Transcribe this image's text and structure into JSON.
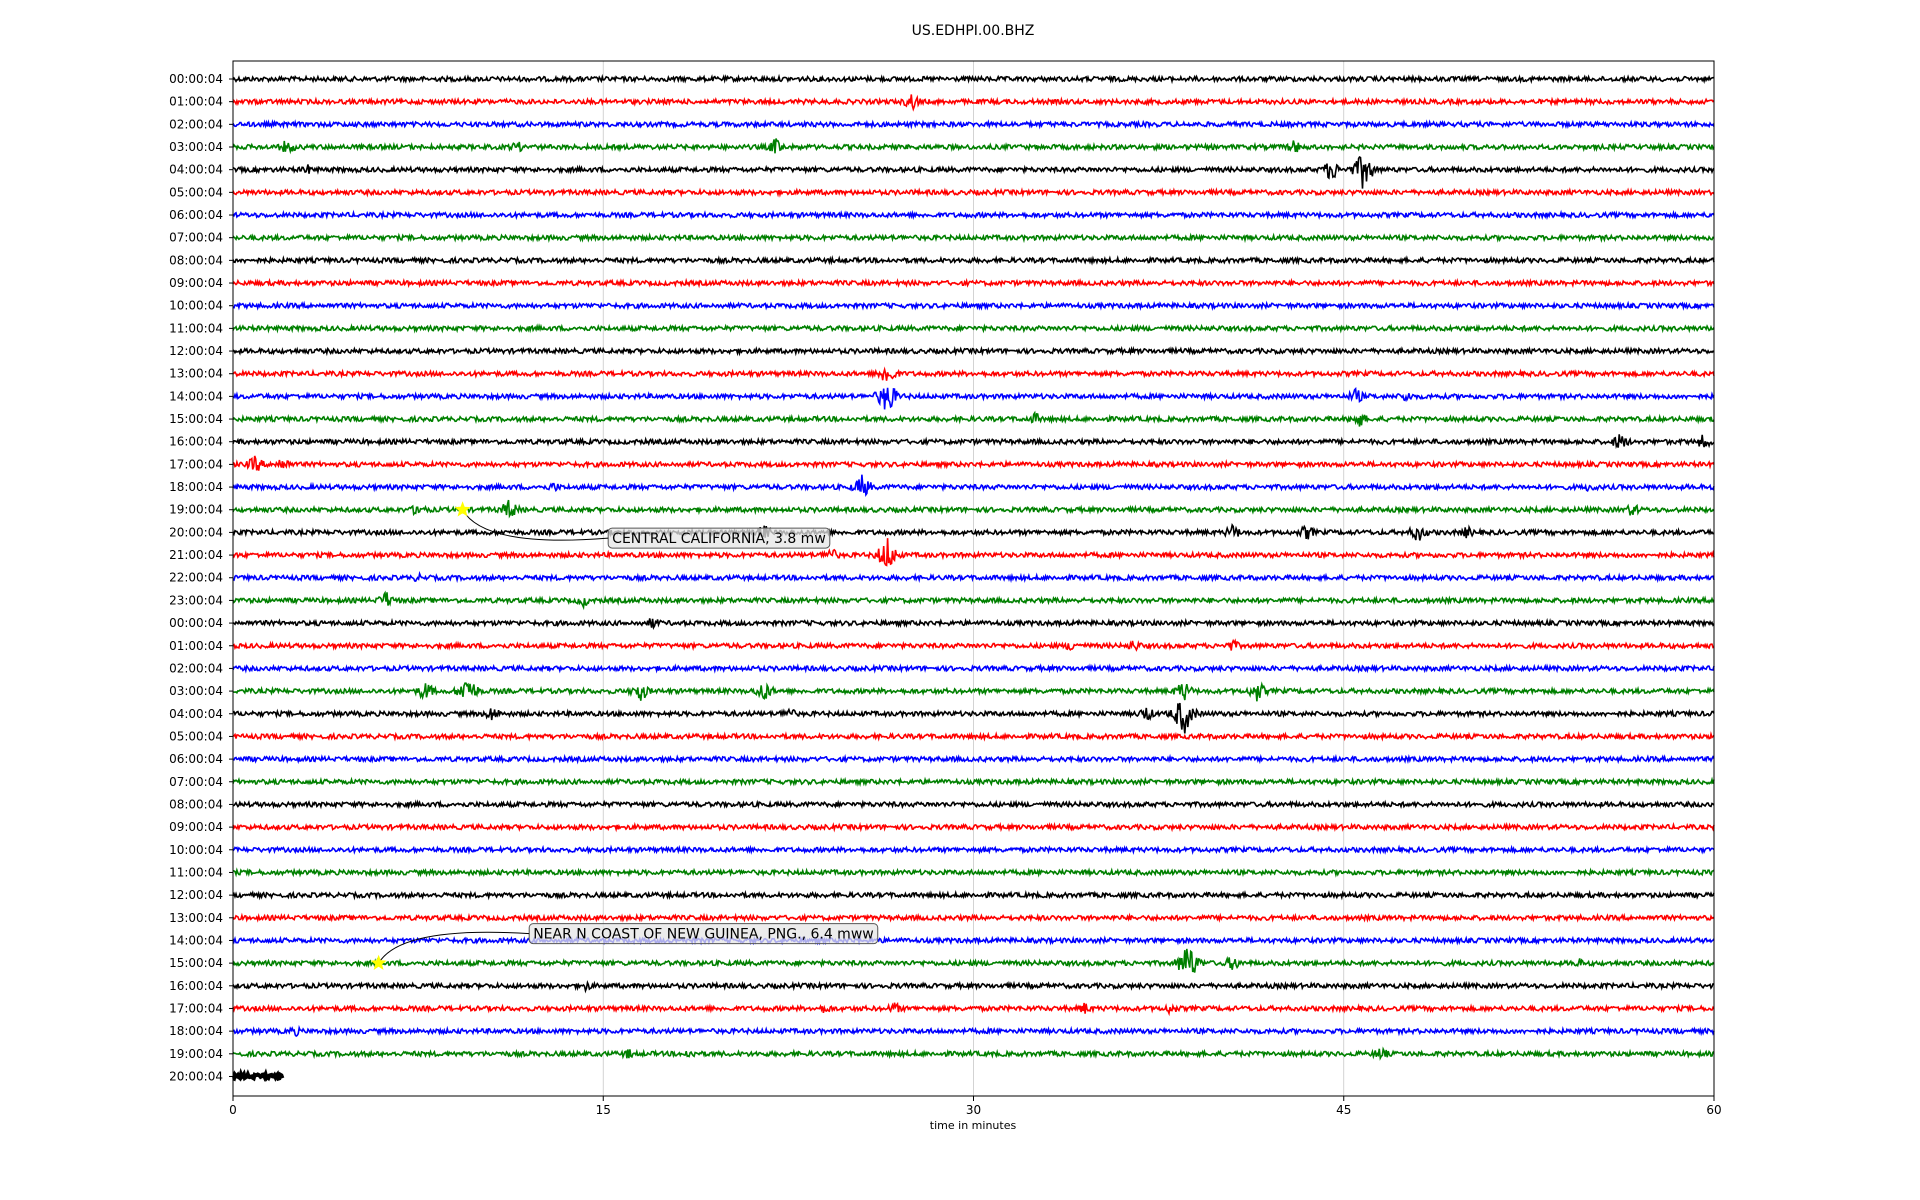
{
  "chart_data": {
    "type": "line",
    "title": "US.EDHPI.00.BHZ",
    "xlabel": "time in minutes",
    "ylabel": "",
    "xlim": [
      0,
      60
    ],
    "xticks": [
      "0",
      "15",
      "30",
      "45",
      "60"
    ],
    "grid": true,
    "row_labels": [
      "00:00:04",
      "01:00:04",
      "02:00:04",
      "03:00:04",
      "04:00:04",
      "05:00:04",
      "06:00:04",
      "07:00:04",
      "08:00:04",
      "09:00:04",
      "10:00:04",
      "11:00:04",
      "12:00:04",
      "13:00:04",
      "14:00:04",
      "15:00:04",
      "16:00:04",
      "17:00:04",
      "18:00:04",
      "19:00:04",
      "20:00:04",
      "21:00:04",
      "22:00:04",
      "23:00:04",
      "00:00:04",
      "01:00:04",
      "02:00:04",
      "03:00:04",
      "04:00:04",
      "05:00:04",
      "06:00:04",
      "07:00:04",
      "08:00:04",
      "09:00:04",
      "10:00:04",
      "11:00:04",
      "12:00:04",
      "13:00:04",
      "14:00:04",
      "15:00:04",
      "16:00:04",
      "17:00:04",
      "18:00:04",
      "19:00:04",
      "20:00:04"
    ],
    "trace_colors": [
      "#000000",
      "#ff0000",
      "#0000ff",
      "#008000"
    ],
    "last_trace_end_minute": 2,
    "events": [
      {
        "row": 1,
        "minute": 27.5,
        "amp": 10
      },
      {
        "row": 3,
        "minute": 2.2,
        "amp": 9
      },
      {
        "row": 3,
        "minute": 11.5,
        "amp": 7
      },
      {
        "row": 3,
        "minute": 22,
        "amp": 10
      },
      {
        "row": 3,
        "minute": 43,
        "amp": 8
      },
      {
        "row": 4,
        "minute": 3,
        "amp": 6
      },
      {
        "row": 4,
        "minute": 44.5,
        "amp": 13
      },
      {
        "row": 4,
        "minute": 45.8,
        "amp": 22
      },
      {
        "row": 13,
        "minute": 26.5,
        "amp": 14
      },
      {
        "row": 14,
        "minute": 26.5,
        "amp": 20
      },
      {
        "row": 14,
        "minute": 45.5,
        "amp": 9
      },
      {
        "row": 14,
        "minute": 47.5,
        "amp": 7
      },
      {
        "row": 15,
        "minute": 32.5,
        "amp": 7
      },
      {
        "row": 15,
        "minute": 45.6,
        "amp": 10
      },
      {
        "row": 16,
        "minute": 56.2,
        "amp": 10
      },
      {
        "row": 16,
        "minute": 59.6,
        "amp": 9
      },
      {
        "row": 17,
        "minute": 0.9,
        "amp": 10
      },
      {
        "row": 17,
        "minute": 2,
        "amp": 9
      },
      {
        "row": 18,
        "minute": 25.5,
        "amp": 14
      },
      {
        "row": 18,
        "minute": 13,
        "amp": 6
      },
      {
        "row": 18,
        "minute": 55,
        "amp": 6
      },
      {
        "row": 19,
        "minute": 7.5,
        "amp": 8
      },
      {
        "row": 19,
        "minute": 11.2,
        "amp": 12
      },
      {
        "row": 19,
        "minute": 56.7,
        "amp": 8
      },
      {
        "row": 20,
        "minute": 21.5,
        "amp": 9
      },
      {
        "row": 20,
        "minute": 40.5,
        "amp": 9
      },
      {
        "row": 20,
        "minute": 43.5,
        "amp": 9
      },
      {
        "row": 20,
        "minute": 48,
        "amp": 11
      },
      {
        "row": 20,
        "minute": 50,
        "amp": 7
      },
      {
        "row": 21,
        "minute": 26.5,
        "amp": 20
      },
      {
        "row": 21,
        "minute": 24.2,
        "amp": 9
      },
      {
        "row": 22,
        "minute": 7.5,
        "amp": 5
      },
      {
        "row": 23,
        "minute": 6.2,
        "amp": 10
      },
      {
        "row": 23,
        "minute": 14.2,
        "amp": 7
      },
      {
        "row": 24,
        "minute": 17,
        "amp": 7
      },
      {
        "row": 25,
        "minute": 34,
        "amp": 7
      },
      {
        "row": 25,
        "minute": 36.5,
        "amp": 7
      },
      {
        "row": 25,
        "minute": 40.5,
        "amp": 7
      },
      {
        "row": 27,
        "minute": 7.8,
        "amp": 11
      },
      {
        "row": 27,
        "minute": 9.5,
        "amp": 18
      },
      {
        "row": 27,
        "minute": 16.5,
        "amp": 12
      },
      {
        "row": 27,
        "minute": 21.5,
        "amp": 12
      },
      {
        "row": 27,
        "minute": 38.5,
        "amp": 12
      },
      {
        "row": 27,
        "minute": 41.5,
        "amp": 12
      },
      {
        "row": 28,
        "minute": 10.5,
        "amp": 9
      },
      {
        "row": 28,
        "minute": 22.5,
        "amp": 8
      },
      {
        "row": 28,
        "minute": 37,
        "amp": 9
      },
      {
        "row": 28,
        "minute": 38.5,
        "amp": 24
      },
      {
        "row": 39,
        "minute": 38.7,
        "amp": 24
      },
      {
        "row": 39,
        "minute": 40.5,
        "amp": 9
      },
      {
        "row": 39,
        "minute": 54.5,
        "amp": 6
      },
      {
        "row": 40,
        "minute": 14.3,
        "amp": 6
      },
      {
        "row": 41,
        "minute": 24,
        "amp": 6
      },
      {
        "row": 41,
        "minute": 26.8,
        "amp": 7
      },
      {
        "row": 41,
        "minute": 34.5,
        "amp": 7
      },
      {
        "row": 41,
        "minute": 38,
        "amp": 7
      },
      {
        "row": 42,
        "minute": 2.5,
        "amp": 6
      },
      {
        "row": 43,
        "minute": 16,
        "amp": 6
      },
      {
        "row": 43,
        "minute": 18.5,
        "amp": 6
      },
      {
        "row": 43,
        "minute": 46.5,
        "amp": 8
      }
    ],
    "annotations": [
      {
        "text": "CENTRAL CALIFORNIA, 3.8 mw",
        "row": 19,
        "minute": 9.3,
        "label_minute": 15.2,
        "label_row": 20.25
      },
      {
        "text": "NEAR N COAST OF NEW GUINEA, PNG., 6.4 mww",
        "row": 39,
        "minute": 5.9,
        "label_minute": 12,
        "label_row": 37.7
      }
    ],
    "annotation_marker_color": "#ffff00"
  }
}
